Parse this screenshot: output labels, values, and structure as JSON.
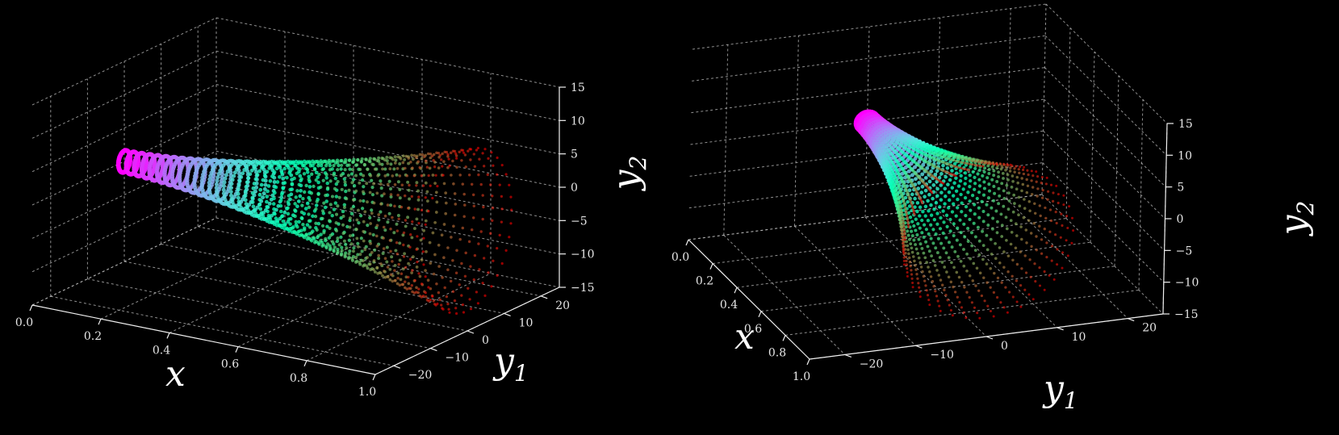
{
  "chart_data": [
    {
      "type": "scatter",
      "projection": "3d",
      "colormap": "rainbow",
      "surface": "funnel — radius grows with x",
      "xlabel": "x",
      "ylabel": "y1",
      "zlabel": "y2",
      "x_ticks": [
        "0.0",
        "0.2",
        "0.4",
        "0.6",
        "0.8",
        "1.0"
      ],
      "y_ticks": [
        "−20",
        "−10",
        "0",
        "10",
        "20"
      ],
      "z_ticks": [
        "15",
        "10",
        "5",
        "0",
        "−5",
        "−10",
        "−15"
      ],
      "xlim": [
        0,
        1
      ],
      "ylim": [
        -25,
        25
      ],
      "zlim": [
        -15,
        15
      ],
      "grid": true,
      "rings": 44,
      "points_per_ring": 38,
      "radius_start": 1.6,
      "radius_end": 12
    },
    {
      "type": "scatter",
      "projection": "3d",
      "colormap": "rainbow",
      "surface": "funnel — radius grows with x",
      "xlabel": "x",
      "ylabel": "y1",
      "zlabel": "y2",
      "x_ticks": [
        "0.0",
        "0.2",
        "0.4",
        "0.6",
        "0.8",
        "1.0"
      ],
      "y_ticks": [
        "−20",
        "−10",
        "0",
        "10",
        "20"
      ],
      "z_ticks": [
        "15",
        "10",
        "5",
        "0",
        "−5",
        "−10",
        "−15"
      ],
      "xlim": [
        0,
        1
      ],
      "ylim": [
        -25,
        25
      ],
      "zlim": [
        -15,
        15
      ],
      "grid": true,
      "rings": 44,
      "points_per_ring": 38,
      "radius_start": 1.6,
      "radius_end": 12
    }
  ]
}
